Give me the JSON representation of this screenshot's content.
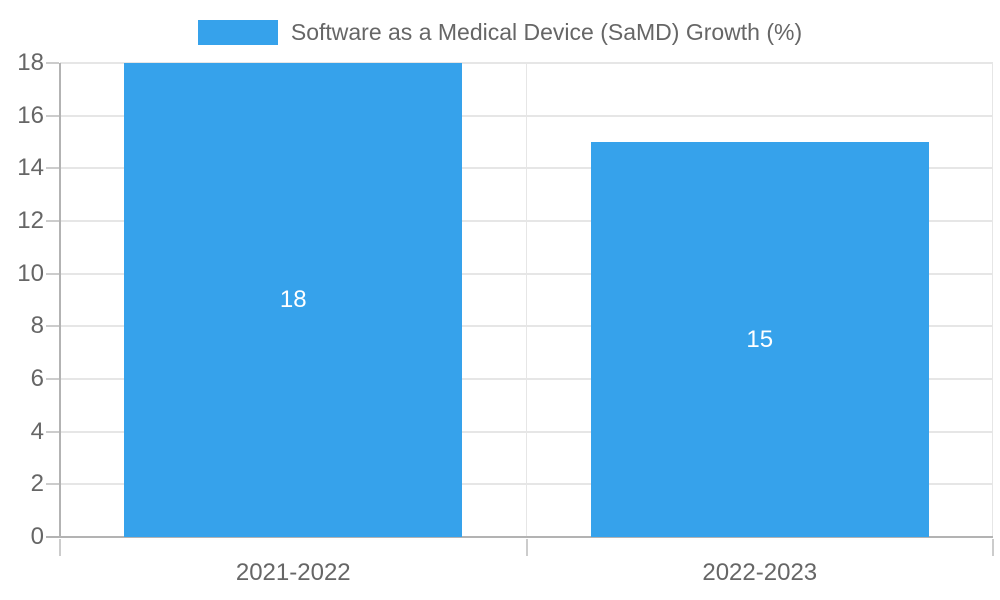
{
  "chart_data": {
    "type": "bar",
    "title": "Software as a Medical Device (SaMD) Growth (%)",
    "categories": [
      "2021-2022",
      "2022-2023"
    ],
    "series": [
      {
        "name": "Software as a Medical Device (SaMD) Growth (%)",
        "values": [
          18,
          15
        ]
      }
    ],
    "value_labels": [
      "18",
      "15"
    ],
    "xlabel": "",
    "ylabel": "",
    "ylim": [
      0,
      18
    ],
    "ytick_step": 2,
    "ytick_labels": [
      "0",
      "2",
      "4",
      "6",
      "8",
      "10",
      "12",
      "14",
      "16",
      "18"
    ],
    "grid": true,
    "legend": {
      "position": "top",
      "label": "Software as a Medical Device (SaMD) Growth (%)"
    },
    "colors": {
      "bar": "#36a2eb",
      "grid": "#e6e6e6",
      "axis": "#b3b3b3",
      "tick": "#cccccc",
      "text": "#666666",
      "value_label": "#ffffff",
      "background": "#ffffff"
    }
  }
}
